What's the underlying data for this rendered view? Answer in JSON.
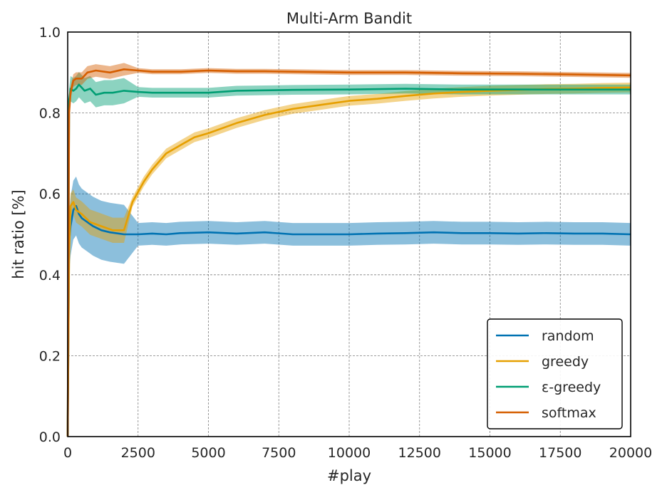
{
  "chart_data": {
    "type": "line",
    "title": "Multi-Arm Bandit",
    "xlabel": "#play",
    "ylabel": "hit ratio [%]",
    "xlim": [
      0,
      20000
    ],
    "ylim": [
      0.0,
      1.0
    ],
    "xticks": [
      0,
      2500,
      5000,
      7500,
      10000,
      12500,
      15000,
      17500,
      20000
    ],
    "xtick_labels": [
      "0",
      "2500",
      "5000",
      "7500",
      "10000",
      "12500",
      "15000",
      "17500",
      "20000"
    ],
    "yticks": [
      0.0,
      0.2,
      0.4,
      0.6,
      0.8,
      1.0
    ],
    "ytick_labels": [
      "0.0",
      "0.2",
      "0.4",
      "0.6",
      "0.8",
      "1.0"
    ],
    "grid": true,
    "legend_position": "lower-right",
    "series": [
      {
        "name": "random",
        "color": "#0072b2",
        "points": [
          [
            0,
            0.0
          ],
          [
            50,
            0.48
          ],
          [
            100,
            0.52
          ],
          [
            200,
            0.56
          ],
          [
            300,
            0.57
          ],
          [
            400,
            0.55
          ],
          [
            500,
            0.54
          ],
          [
            700,
            0.53
          ],
          [
            900,
            0.52
          ],
          [
            1200,
            0.51
          ],
          [
            1500,
            0.505
          ],
          [
            2000,
            0.5
          ],
          [
            2500,
            0.5
          ],
          [
            3000,
            0.502
          ],
          [
            3500,
            0.5
          ],
          [
            4000,
            0.503
          ],
          [
            5000,
            0.505
          ],
          [
            6000,
            0.502
          ],
          [
            7000,
            0.505
          ],
          [
            8000,
            0.5
          ],
          [
            9000,
            0.5
          ],
          [
            10000,
            0.5
          ],
          [
            11000,
            0.502
          ],
          [
            12000,
            0.503
          ],
          [
            13000,
            0.505
          ],
          [
            14000,
            0.503
          ],
          [
            15000,
            0.503
          ],
          [
            16000,
            0.502
          ],
          [
            17000,
            0.503
          ],
          [
            18000,
            0.502
          ],
          [
            19000,
            0.502
          ],
          [
            20000,
            0.5
          ]
        ],
        "band": 0.028
      },
      {
        "name": "greedy",
        "color": "#e69f00",
        "points": [
          [
            0,
            0.0
          ],
          [
            50,
            0.45
          ],
          [
            100,
            0.57
          ],
          [
            200,
            0.58
          ],
          [
            300,
            0.56
          ],
          [
            500,
            0.55
          ],
          [
            800,
            0.53
          ],
          [
            1200,
            0.52
          ],
          [
            1600,
            0.51
          ],
          [
            2000,
            0.51
          ],
          [
            2300,
            0.58
          ],
          [
            2700,
            0.63
          ],
          [
            3000,
            0.66
          ],
          [
            3500,
            0.7
          ],
          [
            4000,
            0.72
          ],
          [
            4500,
            0.74
          ],
          [
            5000,
            0.75
          ],
          [
            6000,
            0.775
          ],
          [
            7000,
            0.795
          ],
          [
            8000,
            0.81
          ],
          [
            9000,
            0.82
          ],
          [
            10000,
            0.83
          ],
          [
            11000,
            0.835
          ],
          [
            12000,
            0.842
          ],
          [
            13000,
            0.848
          ],
          [
            14000,
            0.852
          ],
          [
            15000,
            0.855
          ],
          [
            16000,
            0.857
          ],
          [
            17000,
            0.859
          ],
          [
            18000,
            0.86
          ],
          [
            19000,
            0.862
          ],
          [
            20000,
            0.863
          ]
        ],
        "band": 0.012
      },
      {
        "name": "ε-greedy",
        "color": "#009e73",
        "points": [
          [
            0,
            0.0
          ],
          [
            50,
            0.83
          ],
          [
            100,
            0.86
          ],
          [
            200,
            0.855
          ],
          [
            300,
            0.86
          ],
          [
            400,
            0.87
          ],
          [
            600,
            0.855
          ],
          [
            800,
            0.86
          ],
          [
            1000,
            0.845
          ],
          [
            1300,
            0.85
          ],
          [
            1600,
            0.85
          ],
          [
            2000,
            0.855
          ],
          [
            2500,
            0.852
          ],
          [
            3000,
            0.85
          ],
          [
            4000,
            0.85
          ],
          [
            5000,
            0.85
          ],
          [
            6000,
            0.855
          ],
          [
            7000,
            0.856
          ],
          [
            8000,
            0.857
          ],
          [
            10000,
            0.858
          ],
          [
            12000,
            0.86
          ],
          [
            14000,
            0.858
          ],
          [
            16000,
            0.858
          ],
          [
            18000,
            0.858
          ],
          [
            20000,
            0.858
          ]
        ],
        "band": 0.012
      },
      {
        "name": "softmax",
        "color": "#d55e00",
        "points": [
          [
            0,
            0.0
          ],
          [
            50,
            0.8
          ],
          [
            100,
            0.85
          ],
          [
            200,
            0.88
          ],
          [
            300,
            0.885
          ],
          [
            500,
            0.885
          ],
          [
            700,
            0.9
          ],
          [
            1000,
            0.905
          ],
          [
            1500,
            0.9
          ],
          [
            2000,
            0.908
          ],
          [
            2500,
            0.905
          ],
          [
            3000,
            0.902
          ],
          [
            4000,
            0.902
          ],
          [
            5000,
            0.905
          ],
          [
            6000,
            0.903
          ],
          [
            7000,
            0.903
          ],
          [
            8000,
            0.902
          ],
          [
            10000,
            0.9
          ],
          [
            12000,
            0.9
          ],
          [
            14000,
            0.898
          ],
          [
            16000,
            0.897
          ],
          [
            18000,
            0.895
          ],
          [
            20000,
            0.893
          ]
        ],
        "band": 0.006
      }
    ]
  }
}
